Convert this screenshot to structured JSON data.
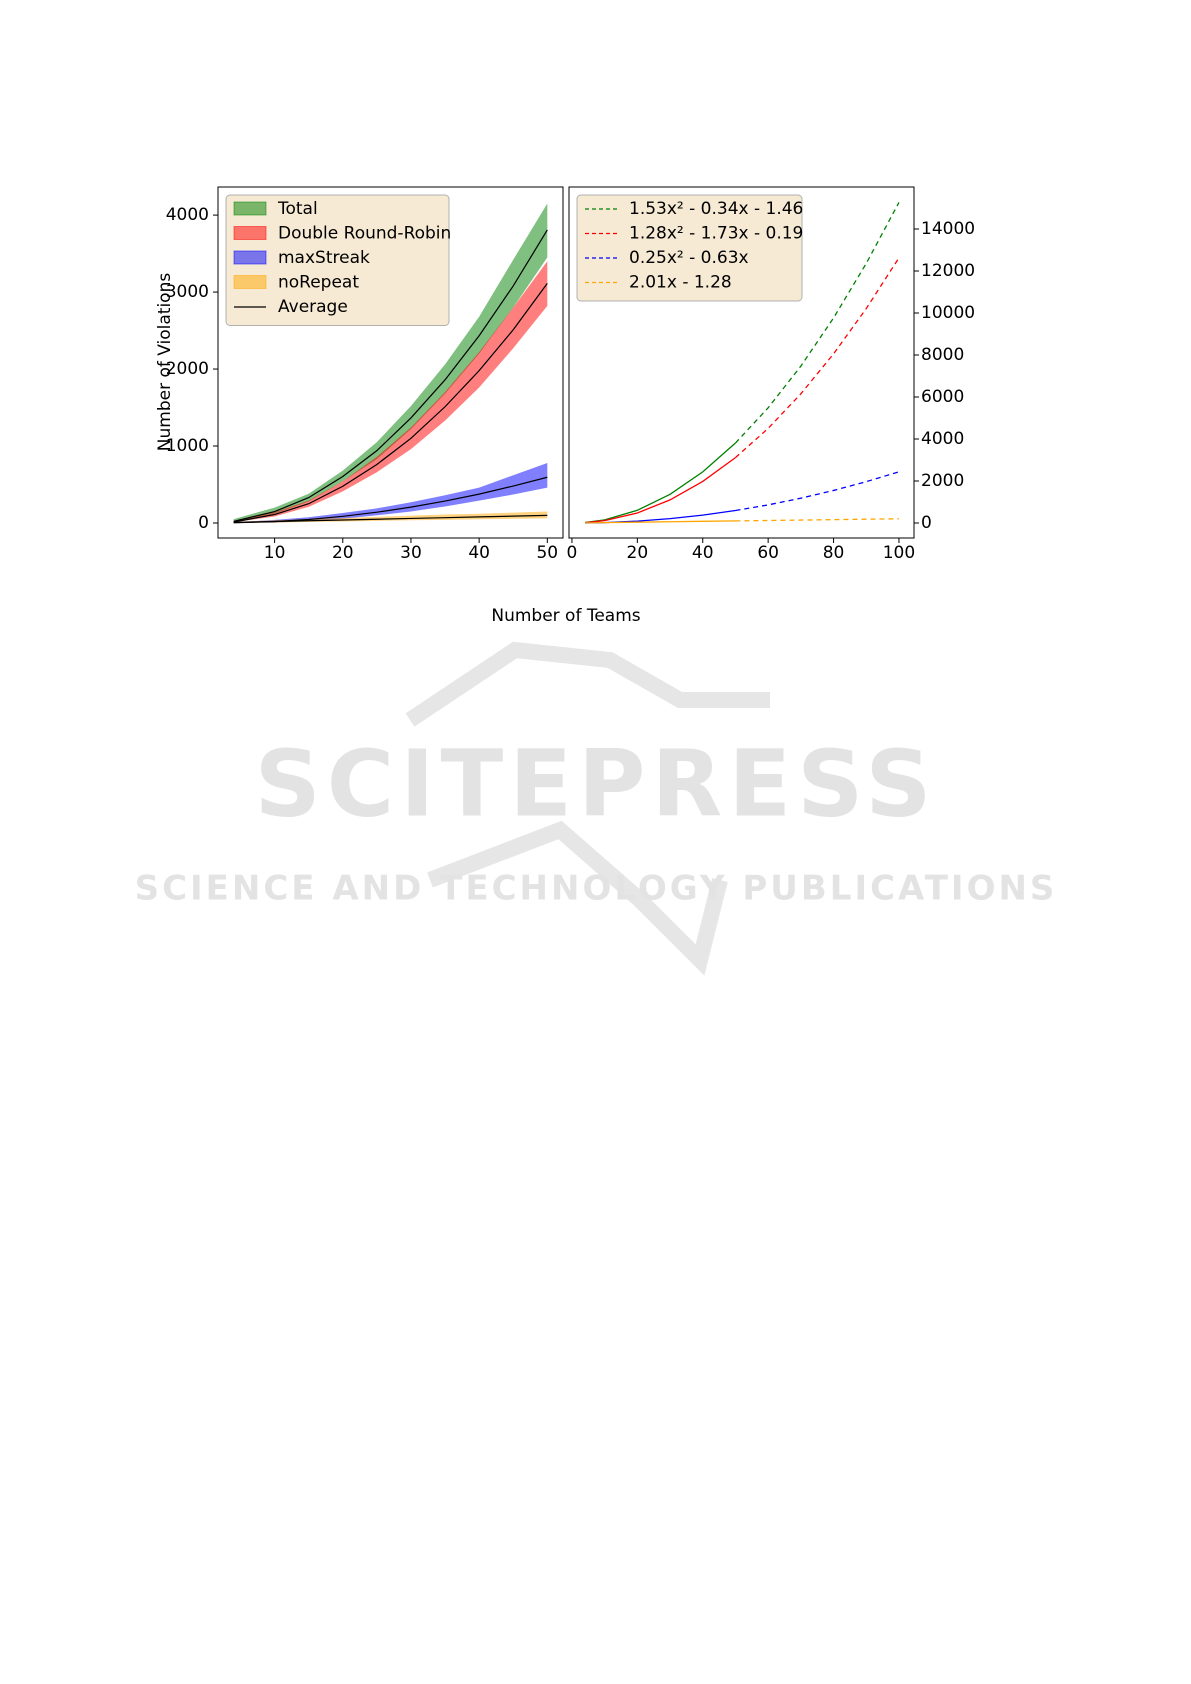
{
  "watermark": {
    "title": "SCITEPRESS",
    "subtitle": "SCIENCE AND TECHNOLOGY PUBLICATIONS"
  },
  "chart_data": [
    {
      "type": "band",
      "ylabel": "Number of Violations",
      "xlabel": "Number of Teams",
      "x": [
        4,
        10,
        15,
        20,
        25,
        30,
        35,
        40,
        45,
        50
      ],
      "xlim": [
        1.7,
        52.3
      ],
      "ylim": [
        -195,
        4365
      ],
      "xticks": [
        10,
        20,
        30,
        40,
        50
      ],
      "yticks": [
        0,
        1000,
        2000,
        3000,
        4000
      ],
      "legend": "upper left",
      "average": {
        "name": "Average",
        "color": "#000000"
      },
      "series": [
        {
          "name": "Total",
          "color": "#008000",
          "values": [
            22,
            148,
            330,
            604,
            940,
            1365,
            1860,
            2433,
            3080,
            3807
          ],
          "low": [
            15,
            120,
            280,
            540,
            830,
            1220,
            1680,
            2200,
            2800,
            3450
          ],
          "high": [
            50,
            200,
            380,
            680,
            1050,
            1520,
            2060,
            2680,
            3420,
            4150
          ]
        },
        {
          "name": "Double Round-Robin",
          "color": "#ff0000",
          "values": [
            13,
            110,
            250,
            477,
            760,
            1100,
            1510,
            1979,
            2510,
            3113
          ],
          "low": [
            8,
            85,
            210,
            410,
            660,
            960,
            1330,
            1760,
            2270,
            2820
          ],
          "high": [
            20,
            140,
            290,
            540,
            860,
            1240,
            1700,
            2220,
            2800,
            3400
          ]
        },
        {
          "name": "maxStreak",
          "color": "#0000ff",
          "values": [
            2,
            19,
            45,
            87,
            140,
            206,
            285,
            375,
            480,
            594
          ],
          "low": [
            0,
            5,
            25,
            55,
            100,
            150,
            215,
            290,
            370,
            460
          ],
          "high": [
            10,
            40,
            75,
            130,
            190,
            270,
            360,
            460,
            620,
            780
          ]
        },
        {
          "name": "noRepeat",
          "color": "#ffa500",
          "values": [
            7,
            19,
            29,
            39,
            49,
            59,
            69,
            79,
            89,
            99
          ],
          "low": [
            0,
            5,
            15,
            20,
            28,
            35,
            40,
            48,
            55,
            60
          ],
          "high": [
            15,
            35,
            50,
            65,
            80,
            95,
            110,
            120,
            135,
            150
          ]
        }
      ]
    },
    {
      "type": "fit",
      "x": [
        4,
        10,
        20,
        30,
        40,
        50,
        60,
        70,
        80,
        90,
        100
      ],
      "xlim": [
        -0.9,
        104.6
      ],
      "ylim": [
        -715,
        16000
      ],
      "xticks": [
        0,
        20,
        40,
        60,
        80,
        100
      ],
      "yticks": [
        0,
        2000,
        4000,
        6000,
        8000,
        10000,
        12000,
        14000
      ],
      "legend": "upper left",
      "series": [
        {
          "name": "1.53x² - 0.34x - 1.46",
          "color": "#008000",
          "values": [
            21.7,
            148,
            604,
            1365,
            2433,
            3807,
            null,
            null,
            null,
            null,
            null
          ],
          "extrapolated": [
            null,
            null,
            null,
            null,
            null,
            3807,
            5486,
            7472,
            9763,
            12361,
            15265
          ]
        },
        {
          "name": "1.28x² - 1.73x - 0.19",
          "color": "#ff0000",
          "values": [
            13.4,
            110.5,
            477,
            1100,
            1979,
            3113,
            null,
            null,
            null,
            null,
            null
          ],
          "extrapolated": [
            null,
            null,
            null,
            null,
            null,
            3113,
            4504,
            6151,
            8053,
            10212,
            12627
          ]
        },
        {
          "name": "0.25x² - 0.63x",
          "color": "#0000ff",
          "values": [
            1.5,
            18.7,
            87.4,
            206,
            375,
            594,
            null,
            null,
            null,
            null,
            null
          ],
          "extrapolated": [
            null,
            null,
            null,
            null,
            null,
            594,
            862,
            1181,
            1550,
            1968,
            2437
          ]
        },
        {
          "name": "2.01x - 1.28",
          "color": "#ffa500",
          "values": [
            6.8,
            18.8,
            39,
            59,
            79,
            99,
            null,
            null,
            null,
            null,
            null
          ],
          "extrapolated": [
            null,
            null,
            null,
            null,
            null,
            99,
            119,
            139,
            159,
            180,
            200
          ]
        }
      ]
    }
  ]
}
